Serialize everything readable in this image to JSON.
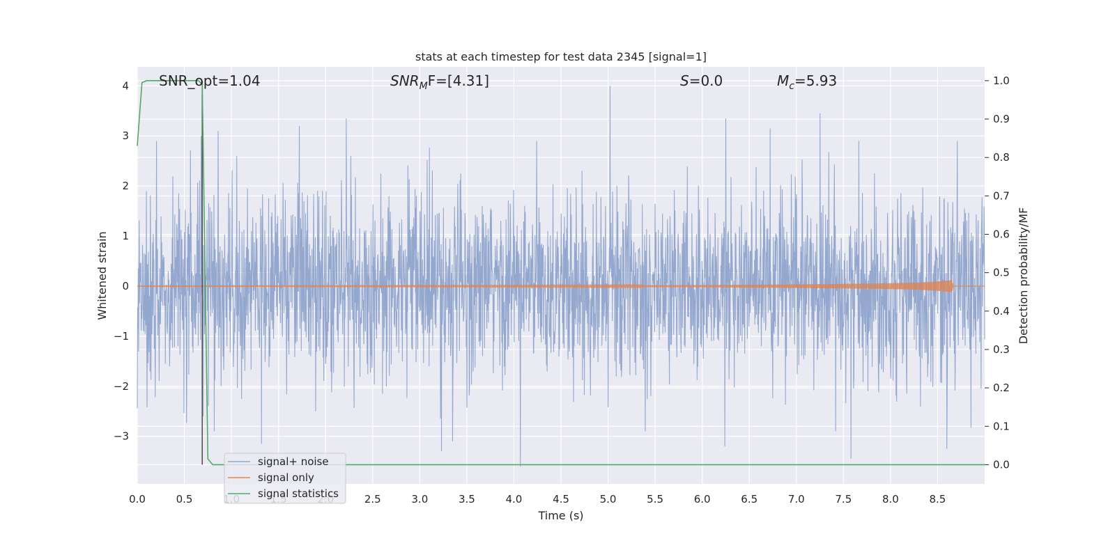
{
  "chart_data": {
    "type": "line",
    "title": "stats at each timestep for test data 2345 [signal=1]",
    "xlabel": "Time (s)",
    "ylabel_left": "Whitened strain",
    "ylabel_right": "Detection probability/MF",
    "xlim": [
      0.0,
      9.0
    ],
    "ylim_left": [
      -3.95,
      4.38
    ],
    "ylim_right": [
      -0.05,
      1.036
    ],
    "x_ticks": [
      "0.0",
      "0.5",
      "1.0",
      "1.5",
      "2.0",
      "2.5",
      "3.0",
      "3.5",
      "4.0",
      "4.5",
      "5.0",
      "5.5",
      "6.0",
      "6.5",
      "7.0",
      "7.5",
      "8.0",
      "8.5"
    ],
    "y_left_ticks": [
      "4",
      "3",
      "2",
      "1",
      "0",
      "−1",
      "−2",
      "−3"
    ],
    "y_right_ticks": [
      "1.0",
      "0.9",
      "0.8",
      "0.7",
      "0.6",
      "0.5",
      "0.4",
      "0.3",
      "0.2",
      "0.1",
      "0.0"
    ],
    "grid": true,
    "legend_position": "lower-left",
    "annotations": {
      "snr_opt": "SNR_opt=1.04",
      "snr_mf_main": "SNR",
      "snr_mf_sub": "M",
      "snr_mf_rest": "F=[4.31]",
      "s_main": "S",
      "s_rest": "=0.0",
      "mc_main": "M",
      "mc_sub": "c",
      "mc_rest": "=5.93"
    },
    "series": [
      {
        "name": "signal+ noise",
        "color": "#8fa4cc",
        "description_values": {
          "noise_std_approx": 0.9,
          "peaks": [
            [
              0.68,
              3.0
            ],
            [
              5.02,
              4.0
            ],
            [
              7.25,
              3.45
            ],
            [
              2.22,
              3.35
            ],
            [
              1.72,
              3.2
            ],
            [
              0.86,
              3.1
            ],
            [
              6.25,
              3.35
            ],
            [
              6.72,
              3.15
            ]
          ],
          "troughs": [
            [
              4.07,
              -3.6
            ],
            [
              7.58,
              -3.45
            ],
            [
              6.24,
              -3.2
            ],
            [
              3.23,
              -3.3
            ],
            [
              3.35,
              -3.1
            ],
            [
              1.32,
              -3.15
            ],
            [
              8.6,
              -3.25
            ],
            [
              0.7,
              -2.6
            ]
          ]
        }
      },
      {
        "name": "signal only",
        "color": "#dd8452",
        "envelope": [
          [
            0.0,
            0.005
          ],
          [
            2.0,
            0.008
          ],
          [
            4.0,
            0.012
          ],
          [
            6.0,
            0.02
          ],
          [
            7.0,
            0.035
          ],
          [
            7.8,
            0.05
          ],
          [
            8.3,
            0.07
          ],
          [
            8.55,
            0.1
          ],
          [
            8.65,
            0.12
          ],
          [
            8.67,
            0.0
          ]
        ]
      },
      {
        "name": "signal statistics",
        "color": "#55a868",
        "axis": "right",
        "points": [
          [
            0.0,
            0.83
          ],
          [
            0.05,
            0.995
          ],
          [
            0.1,
            1.0
          ],
          [
            0.2,
            1.0
          ],
          [
            0.3,
            1.0
          ],
          [
            0.4,
            1.0
          ],
          [
            0.5,
            1.0
          ],
          [
            0.6,
            1.0
          ],
          [
            0.65,
            1.0
          ],
          [
            0.69,
            0.99
          ],
          [
            0.72,
            0.5
          ],
          [
            0.75,
            0.015
          ],
          [
            0.8,
            0.0
          ],
          [
            1.0,
            0.0
          ],
          [
            9.0,
            0.0
          ]
        ]
      }
    ],
    "vline": {
      "x": 0.69,
      "color": "#555555"
    }
  }
}
